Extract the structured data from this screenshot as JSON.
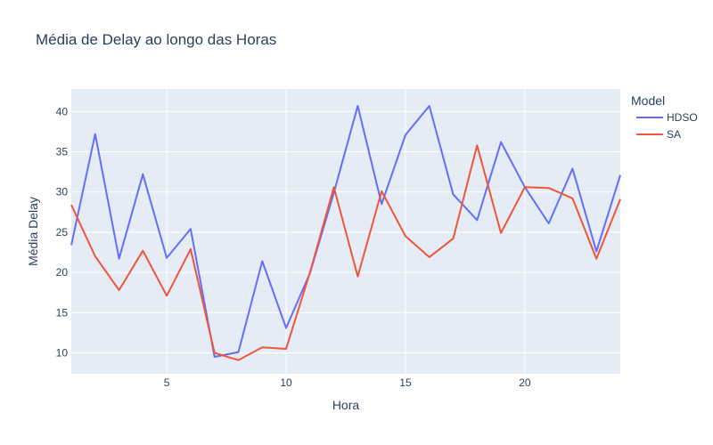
{
  "chart_data": {
    "type": "line",
    "title": "Média de Delay ao longo das Horas",
    "xlabel": "Hora",
    "ylabel": "Média Delay",
    "xlim": [
      1,
      24
    ],
    "ylim": [
      7.4,
      42.8
    ],
    "x_ticks": [
      5,
      10,
      15,
      20
    ],
    "y_ticks": [
      10,
      15,
      20,
      25,
      30,
      35,
      40
    ],
    "grid": true,
    "legend_title": "Model",
    "legend_position": "right",
    "x": [
      1,
      2,
      3,
      4,
      5,
      6,
      7,
      8,
      9,
      10,
      11,
      12,
      13,
      14,
      15,
      16,
      17,
      18,
      19,
      20,
      21,
      22,
      23,
      24
    ],
    "series": [
      {
        "name": "HDSO",
        "color": "#636efa",
        "values": [
          23.4,
          37.2,
          21.7,
          32.2,
          21.8,
          25.4,
          9.5,
          10.1,
          21.4,
          13.1,
          19.9,
          29.9,
          40.7,
          28.5,
          37.1,
          40.7,
          29.7,
          26.5,
          36.2,
          30.6,
          26.1,
          32.9,
          22.6,
          32.1
        ]
      },
      {
        "name": "SA",
        "color": "#ef553b",
        "values": [
          28.4,
          22.0,
          17.8,
          22.7,
          17.1,
          22.9,
          10.0,
          9.1,
          10.7,
          10.5,
          20.0,
          30.6,
          19.5,
          30.1,
          24.5,
          21.9,
          24.2,
          35.8,
          24.9,
          30.6,
          30.5,
          29.2,
          21.7,
          29.1
        ]
      }
    ]
  }
}
